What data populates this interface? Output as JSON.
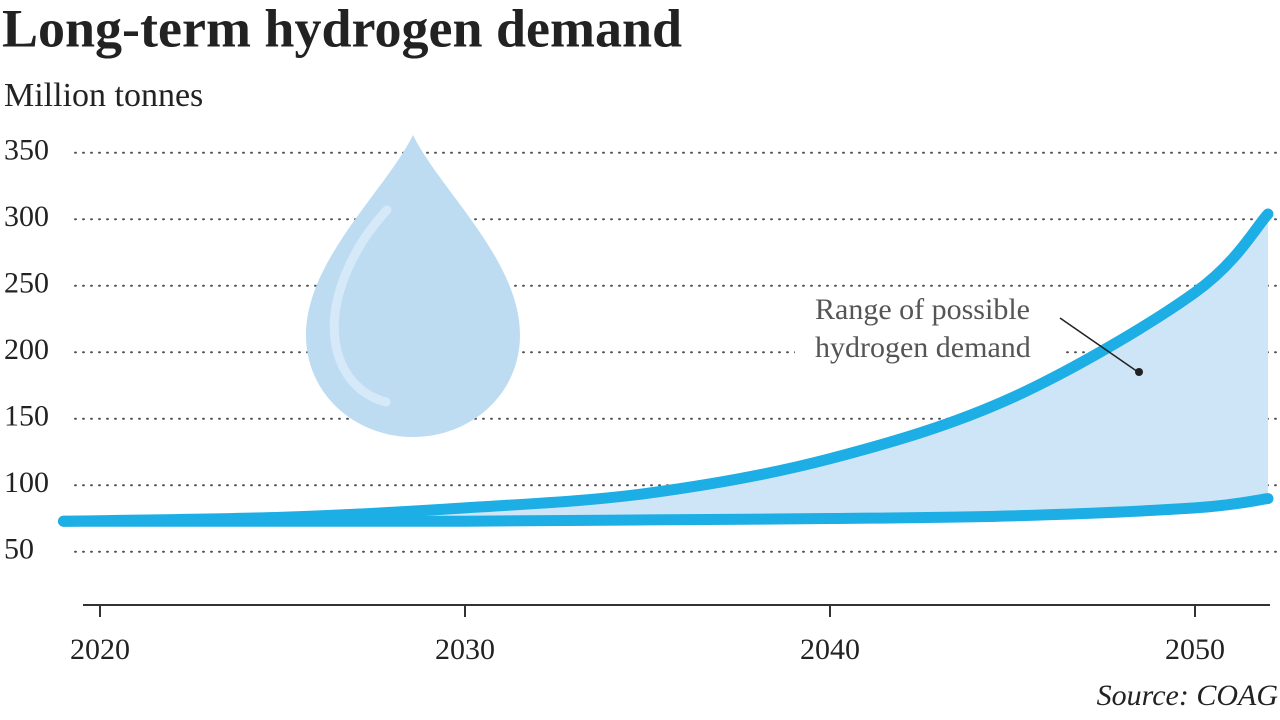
{
  "chart_data": {
    "type": "area-range",
    "title": "Long-term hydrogen demand",
    "subtitle": "Million tonnes",
    "annotation": [
      "Range of possible",
      "hydrogen demand"
    ],
    "source": "Source: COAG",
    "x": [
      2019,
      2025,
      2030,
      2035,
      2040,
      2045,
      2050,
      2052
    ],
    "series": [
      {
        "color": "#1caee4",
        "values": [
          73,
          76,
          83,
          94,
          120,
          166,
          245,
          304
        ]
      },
      {
        "color": "#1caee4",
        "values": [
          73,
          73,
          73,
          74,
          75,
          77,
          83,
          90
        ]
      }
    ],
    "fill_color": "#cde5f6",
    "xlim": [
      2019,
      2052
    ],
    "xticks": [
      2020,
      2030,
      2040,
      2050
    ],
    "ylim": [
      10,
      360
    ],
    "yticks": [
      50,
      100,
      150,
      200,
      250,
      300,
      350
    ],
    "grid": true
  }
}
